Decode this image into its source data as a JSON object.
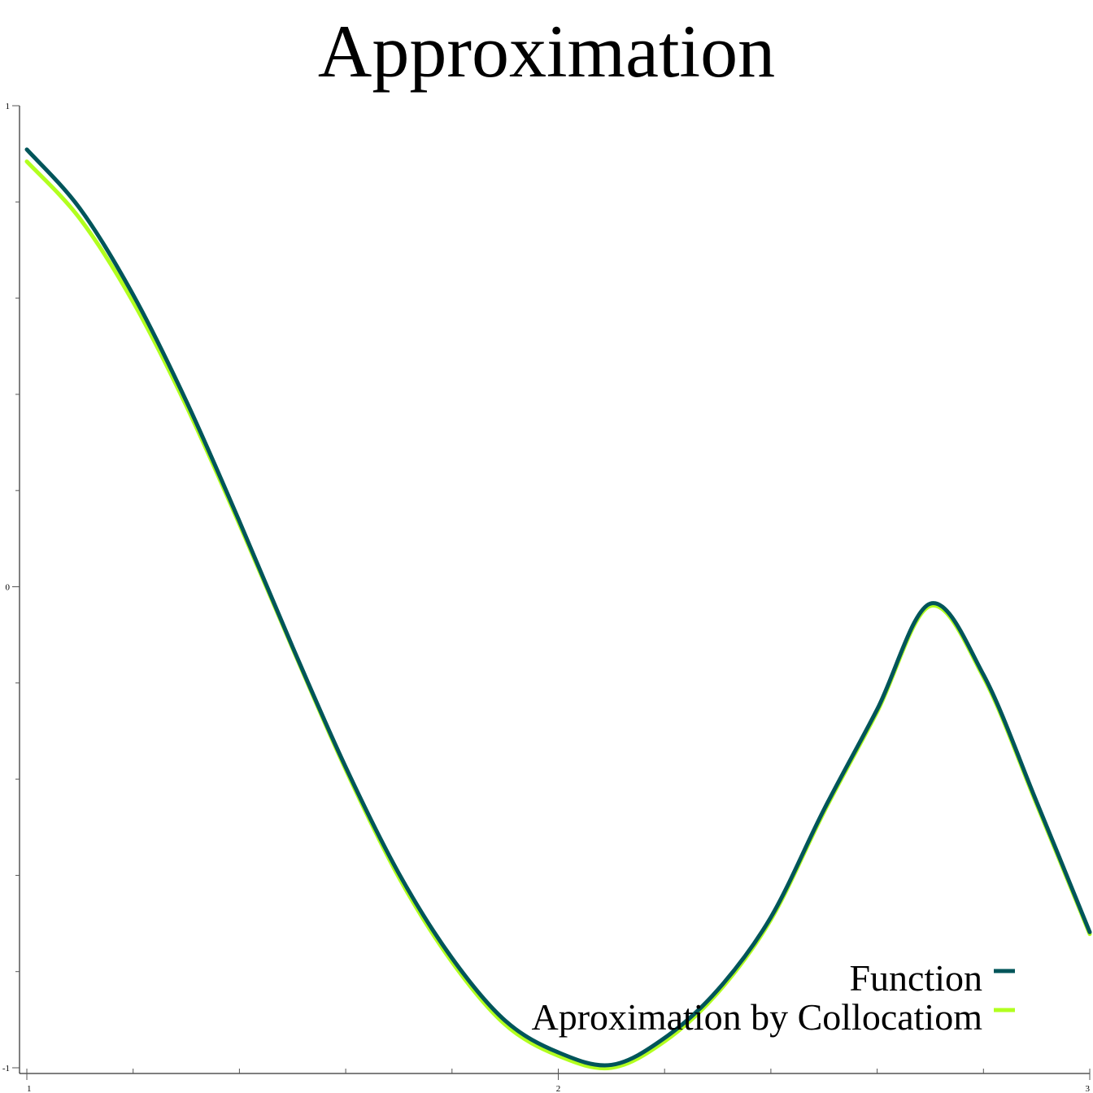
{
  "chart_data": {
    "type": "line",
    "title": "Approximation",
    "xlabel": "",
    "ylabel": "",
    "xlim": [
      1,
      3
    ],
    "ylim": [
      -1,
      1
    ],
    "x_ticks": [
      1,
      2,
      3
    ],
    "x_tick_labels": [
      "1",
      "2",
      "3"
    ],
    "y_ticks": [
      -1,
      0,
      1
    ],
    "y_tick_labels": [
      "-1",
      "0",
      "1"
    ],
    "grid": false,
    "legend_position": "bottom-right",
    "series": [
      {
        "name": "Function",
        "color": "#00555a",
        "x": [
          1.0,
          1.1,
          1.2,
          1.3,
          1.4,
          1.5,
          1.6,
          1.7,
          1.8,
          1.9,
          2.0,
          2.1,
          2.2,
          2.3,
          2.4,
          2.5,
          2.6,
          2.7,
          2.8,
          2.9,
          3.0
        ],
        "y": [
          0.909,
          0.786,
          0.607,
          0.386,
          0.136,
          -0.125,
          -0.375,
          -0.596,
          -0.772,
          -0.902,
          -0.968,
          -0.994,
          -0.938,
          -0.838,
          -0.687,
          -0.463,
          -0.255,
          -0.035,
          -0.183,
          -0.447,
          -0.718
        ]
      },
      {
        "name": "Aproximation by Collocatiom",
        "color": "#b2ff1f",
        "x": [
          1.0,
          1.1,
          1.2,
          1.3,
          1.4,
          1.5,
          1.6,
          1.7,
          1.8,
          1.9,
          2.0,
          2.1,
          2.2,
          2.3,
          2.4,
          2.5,
          2.6,
          2.7,
          2.8,
          2.9,
          3.0
        ],
        "y": [
          0.884,
          0.765,
          0.592,
          0.376,
          0.13,
          -0.128,
          -0.38,
          -0.604,
          -0.78,
          -0.91,
          -0.975,
          -1.0,
          -0.945,
          -0.844,
          -0.692,
          -0.468,
          -0.26,
          -0.04,
          -0.188,
          -0.452,
          -0.722
        ]
      }
    ]
  }
}
